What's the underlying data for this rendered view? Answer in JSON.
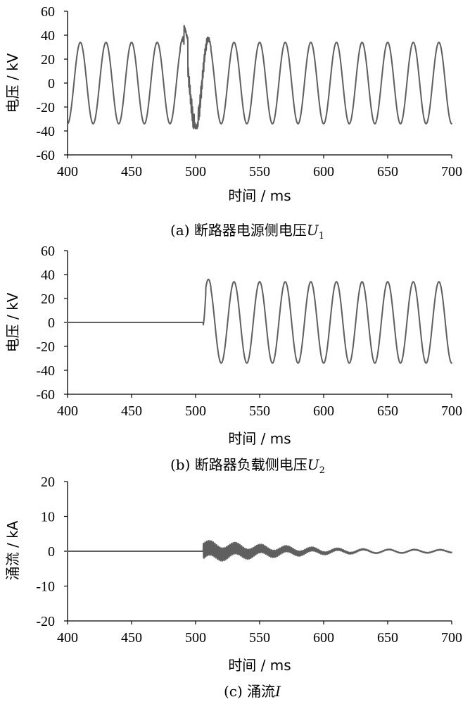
{
  "chart_data": [
    {
      "type": "line",
      "caption_prefix": "(a)  断路器电源侧电压",
      "caption_symbol": "U",
      "caption_subscript": "1",
      "xlabel": "时间 / ms",
      "ylabel": "电压 / kV",
      "xlim": [
        400,
        700
      ],
      "ylim": [
        -60,
        60
      ],
      "xticks": [
        400,
        450,
        500,
        550,
        600,
        650,
        700
      ],
      "yticks": [
        -60,
        -40,
        -20,
        0,
        20,
        40,
        60
      ],
      "series": [
        {
          "signal": "sine",
          "amplitude_kv": 34,
          "frequency_hz": 50,
          "first_peak_ms": 410,
          "range_ms": [
            400,
            700
          ],
          "disturbance": {
            "range_ms": [
              488,
              512
            ],
            "peak_kv": 48,
            "trough_kv": -38,
            "description_values_kv": [
              48,
              -38,
              36
            ]
          }
        }
      ]
    },
    {
      "type": "line",
      "caption_prefix": "(b)  断路器负载侧电压",
      "caption_symbol": "U",
      "caption_subscript": "2",
      "xlabel": "时间 / ms",
      "ylabel": "电压 / kV",
      "xlim": [
        400,
        700
      ],
      "ylim": [
        -60,
        60
      ],
      "xticks": [
        400,
        450,
        500,
        550,
        600,
        650,
        700
      ],
      "yticks": [
        -60,
        -40,
        -20,
        0,
        20,
        40,
        60
      ],
      "series": [
        {
          "signal": "sine-after-close",
          "pre_close_value_kv": 0,
          "close_time_ms": 506,
          "amplitude_kv": 34,
          "frequency_hz": 50,
          "first_peak_ms": 510,
          "overshoot_peak_kv": 36,
          "range_ms": [
            400,
            700
          ]
        }
      ]
    },
    {
      "type": "line",
      "caption_prefix": "(c)  涌流",
      "caption_symbol": "I",
      "caption_subscript": "",
      "xlabel": "时间 / ms",
      "ylabel": "涌流 / kA",
      "xlim": [
        400,
        700
      ],
      "ylim": [
        -20,
        20
      ],
      "xticks": [
        400,
        450,
        500,
        550,
        600,
        650,
        700
      ],
      "yticks": [
        -20,
        -10,
        0,
        10,
        20
      ],
      "series": [
        {
          "signal": "decaying-oscillation",
          "pre_close_value_ka": 0,
          "close_time_ms": 506,
          "initial_peak_ka": 2.5,
          "hf_envelope_ka": [
            [
              506,
              2.2
            ],
            [
              550,
              1.2
            ],
            [
              600,
              0.4
            ],
            [
              640,
              0.1
            ]
          ],
          "lf_amplitude_ka": [
            [
              506,
              1.0
            ],
            [
              600,
              0.6
            ],
            [
              700,
              0.4
            ]
          ],
          "frequency_hz": 50,
          "range_ms": [
            400,
            700
          ]
        }
      ]
    }
  ]
}
